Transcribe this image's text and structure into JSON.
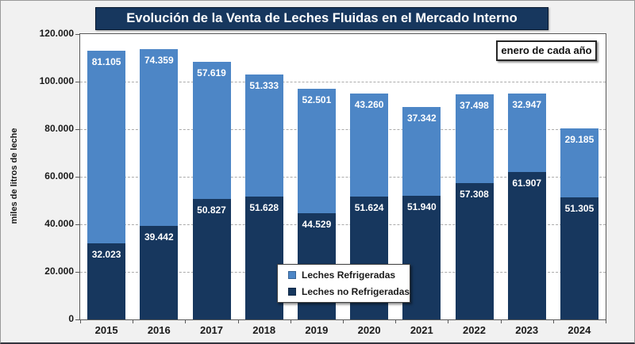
{
  "title": "Evolución de la Venta de Leches Fluidas en el Mercado Interno",
  "annotation": "enero de cada año",
  "y_axis_title": "miles de litros de leche",
  "colors": {
    "refrigerated_blue": "#4D86C6",
    "non_refrigerated_navy": "#17375E",
    "title_background": "#17375E",
    "frame_background": "#F1F1F1",
    "gridline_gray": "#ABABAB"
  },
  "legend": {
    "items": [
      {
        "label": "Leches Refrigeradas",
        "color": "#4D86C6"
      },
      {
        "label": "Leches no Refrigeradas",
        "color": "#17375E"
      }
    ]
  },
  "chart_data": {
    "type": "bar",
    "stacked": true,
    "title": "Evolución de la Venta de Leches Fluidas en el Mercado Interno",
    "xlabel": "",
    "ylabel": "miles de litros de leche",
    "ylim": [
      0,
      120000
    ],
    "ytick_step": 20000,
    "ytick_labels": [
      "0",
      "20.000",
      "40.000",
      "60.000",
      "80.000",
      "100.000",
      "120.000"
    ],
    "grid": "horizontal-dashed",
    "legend_position": "inside-bottom-center",
    "annotation": "enero de cada año",
    "categories": [
      "2015",
      "2016",
      "2017",
      "2018",
      "2019",
      "2020",
      "2021",
      "2022",
      "2023",
      "2024"
    ],
    "series": [
      {
        "name": "Leches Refrigeradas",
        "color": "#4D86C6",
        "stack_position": "top",
        "values": [
          81105,
          74359,
          57619,
          51333,
          52501,
          43260,
          37342,
          37498,
          32947,
          29185
        ],
        "labels": [
          "81.105",
          "74.359",
          "57.619",
          "51.333",
          "52.501",
          "43.260",
          "37.342",
          "37.498",
          "32.947",
          "29.185"
        ]
      },
      {
        "name": "Leches no Refrigeradas",
        "color": "#17375E",
        "stack_position": "bottom",
        "values": [
          32023,
          39442,
          50827,
          51628,
          44529,
          51624,
          51940,
          57308,
          61907,
          51305
        ],
        "labels": [
          "32.023",
          "39.442",
          "50.827",
          "51.628",
          "44.529",
          "51.624",
          "51.940",
          "57.308",
          "61.907",
          "51.305"
        ]
      }
    ]
  }
}
